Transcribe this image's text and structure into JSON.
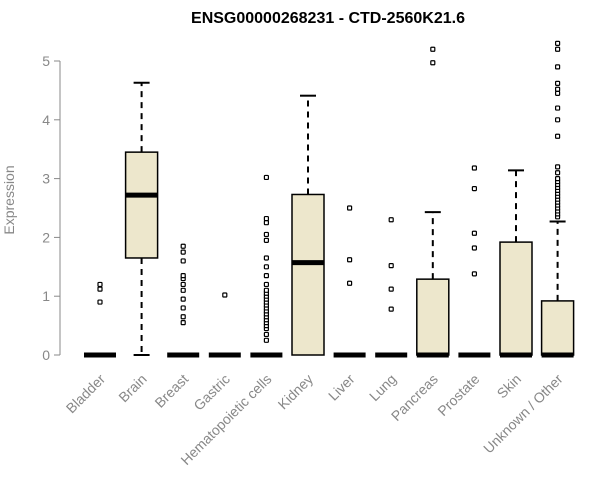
{
  "chart_data": {
    "type": "box",
    "title": "ENSG00000268231 - CTD-2560K21.6",
    "xlabel": "",
    "ylabel": "Expression",
    "ylim": [
      0,
      5.3
    ],
    "yticks": [
      0,
      1,
      2,
      3,
      4,
      5
    ],
    "categories": [
      "Bladder",
      "Brain",
      "Breast",
      "Gastric",
      "Hematopoietic cells",
      "Kidney",
      "Liver",
      "Lung",
      "Pancreas",
      "Prostate",
      "Skin",
      "Unknown / Other"
    ],
    "box_fill": "#ede7cc",
    "boxes": [
      {
        "q1": 0,
        "median": 0,
        "q3": 0,
        "whisker_low": 0,
        "whisker_high": 0,
        "outliers": [
          0.9,
          1.12,
          1.2
        ]
      },
      {
        "q1": 1.65,
        "median": 2.72,
        "q3": 3.45,
        "whisker_low": 0,
        "whisker_high": 4.63,
        "outliers": []
      },
      {
        "q1": 0,
        "median": 0,
        "q3": 0,
        "whisker_low": 0,
        "whisker_high": 0,
        "outliers": [
          0.55,
          0.65,
          0.8,
          0.95,
          1.1,
          1.2,
          1.3,
          1.35,
          1.6,
          1.75,
          1.85
        ]
      },
      {
        "q1": 0,
        "median": 0,
        "q3": 0,
        "whisker_low": 0,
        "whisker_high": 0,
        "outliers": [
          1.02
        ]
      },
      {
        "q1": 0,
        "median": 0,
        "q3": 0,
        "whisker_low": 0,
        "whisker_high": 0,
        "outliers": [
          0.25,
          0.35,
          0.45,
          0.5,
          0.55,
          0.6,
          0.65,
          0.7,
          0.75,
          0.8,
          0.85,
          0.9,
          0.95,
          1.0,
          1.05,
          1.1,
          1.2,
          1.35,
          1.5,
          1.65,
          1.95,
          2.05,
          2.25,
          2.32,
          3.02
        ]
      },
      {
        "q1": 0,
        "median": 1.57,
        "q3": 2.73,
        "whisker_low": 0,
        "whisker_high": 4.41,
        "outliers": []
      },
      {
        "q1": 0,
        "median": 0,
        "q3": 0,
        "whisker_low": 0,
        "whisker_high": 0,
        "outliers": [
          1.22,
          1.62,
          2.5
        ]
      },
      {
        "q1": 0,
        "median": 0,
        "q3": 0,
        "whisker_low": 0,
        "whisker_high": 0,
        "outliers": [
          0.78,
          1.12,
          1.52,
          2.3
        ]
      },
      {
        "q1": 0,
        "median": 0,
        "q3": 1.29,
        "whisker_low": 0,
        "whisker_high": 2.43,
        "outliers": [
          4.97,
          5.2
        ]
      },
      {
        "q1": 0,
        "median": 0,
        "q3": 0,
        "whisker_low": 0,
        "whisker_high": 0,
        "outliers": [
          1.38,
          1.82,
          2.07,
          2.83,
          3.18
        ]
      },
      {
        "q1": 0,
        "median": 0,
        "q3": 1.92,
        "whisker_low": 0,
        "whisker_high": 3.14,
        "outliers": []
      },
      {
        "q1": 0,
        "median": 0,
        "q3": 0.92,
        "whisker_low": 0,
        "whisker_high": 2.27,
        "outliers": [
          2.35,
          2.4,
          2.45,
          2.5,
          2.55,
          2.6,
          2.65,
          2.7,
          2.75,
          2.8,
          2.85,
          2.9,
          2.95,
          3.0,
          3.1,
          3.2,
          3.72,
          4.0,
          4.2,
          4.45,
          4.52,
          4.62,
          4.9,
          5.2,
          5.3
        ]
      }
    ]
  }
}
